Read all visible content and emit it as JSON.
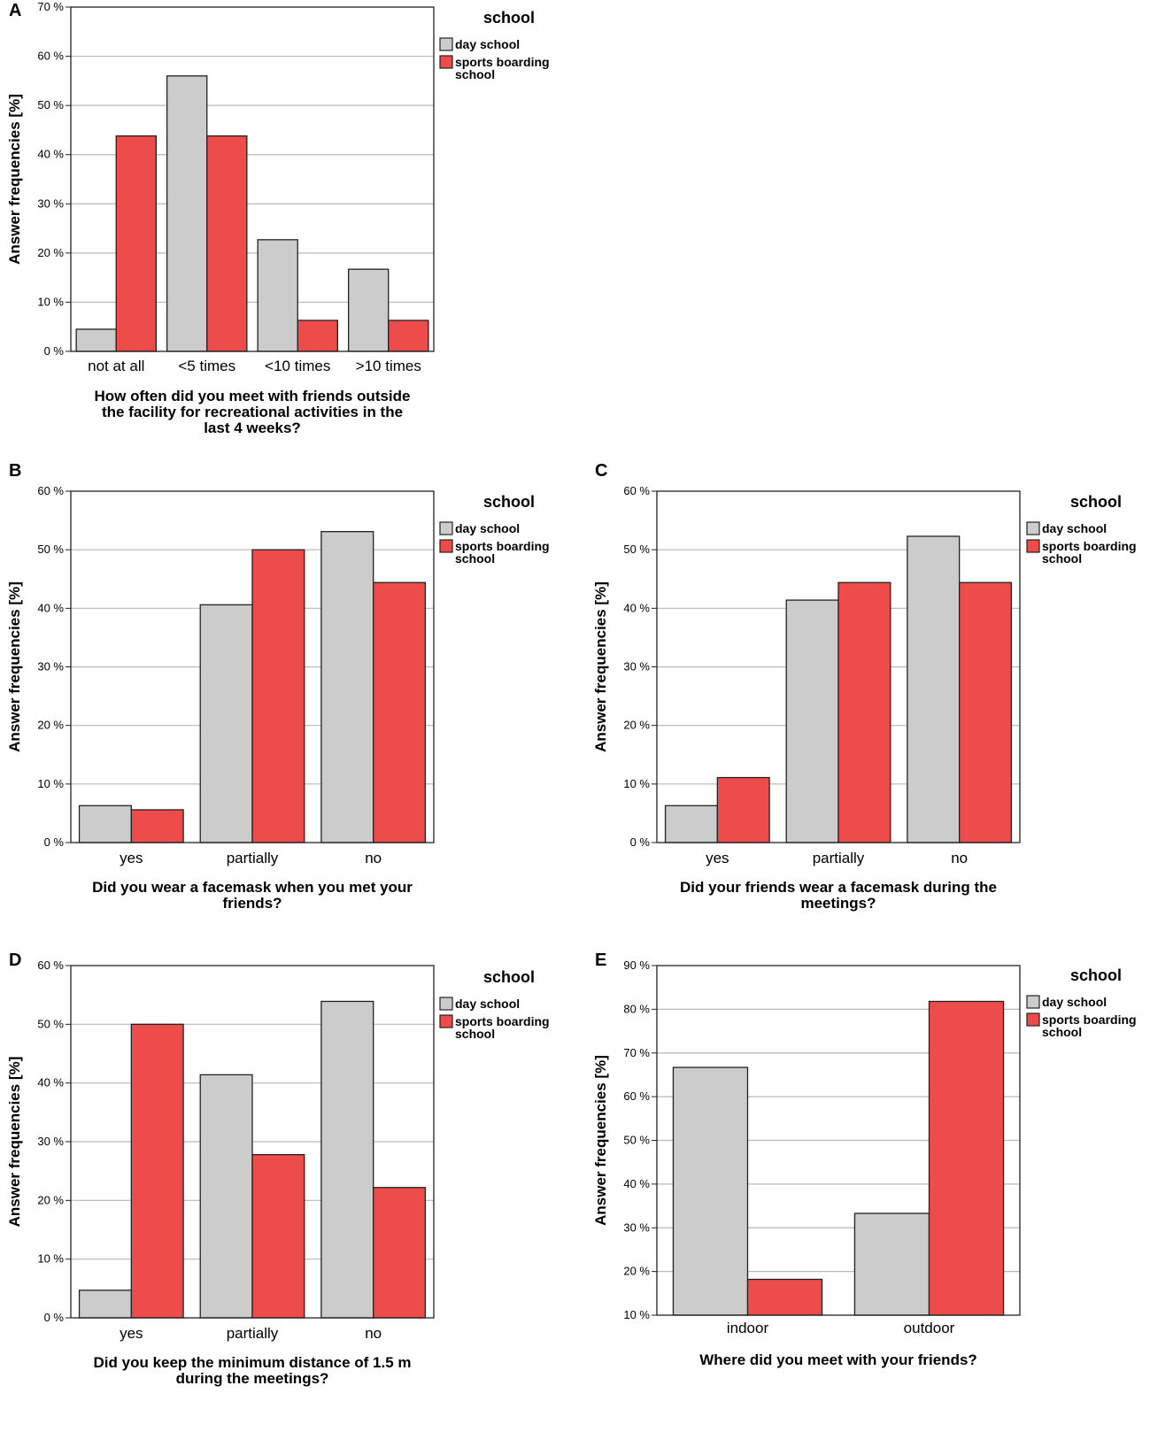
{
  "legend_colors": {
    "day school": "#cccccc",
    "sports boarding school": "#ee4b4b"
  },
  "chart_data": [
    {
      "panel": "A",
      "type": "bar",
      "categories": [
        "not at all",
        "<5 times",
        "<10 times",
        ">10 times"
      ],
      "series": [
        {
          "name": "day school",
          "values": [
            4.5,
            56,
            22.7,
            16.7
          ]
        },
        {
          "name": "sports boarding school",
          "values": [
            43.8,
            43.8,
            6.3,
            6.3
          ]
        }
      ],
      "title": "",
      "xlabel_lines": [
        "How often did you meet with friends outside",
        "the facility for recreational activities in the",
        "last 4 weeks?"
      ],
      "ylabel": "Answer frequencies [%]",
      "ylim": [
        0,
        70
      ],
      "yticks": [
        0,
        10,
        20,
        30,
        40,
        50,
        60,
        70
      ],
      "legend_title": "school",
      "legend_items": [
        [
          "day school"
        ],
        [
          "sports boarding",
          "school"
        ]
      ],
      "legend_position": "right",
      "grid": true
    },
    {
      "panel": "B",
      "type": "bar",
      "categories": [
        "yes",
        "partially",
        "no"
      ],
      "series": [
        {
          "name": "day school",
          "values": [
            6.3,
            40.6,
            53.1
          ]
        },
        {
          "name": "sports boarding school",
          "values": [
            5.6,
            50,
            44.4
          ]
        }
      ],
      "title": "",
      "xlabel_lines": [
        "Did you wear a facemask when you met your",
        "friends?"
      ],
      "ylabel": "Answer frequencies [%]",
      "ylim": [
        0,
        60
      ],
      "yticks": [
        0,
        10,
        20,
        30,
        40,
        50,
        60
      ],
      "legend_title": "school",
      "legend_items": [
        [
          "day school"
        ],
        [
          "sports boarding",
          "school"
        ]
      ],
      "legend_position": "right",
      "grid": true
    },
    {
      "panel": "C",
      "type": "bar",
      "categories": [
        "yes",
        "partially",
        "no"
      ],
      "series": [
        {
          "name": "day school",
          "values": [
            6.3,
            41.4,
            52.3
          ]
        },
        {
          "name": "sports boarding school",
          "values": [
            11.1,
            44.4,
            44.4
          ]
        }
      ],
      "title": "",
      "xlabel_lines": [
        "Did your friends wear a facemask during the",
        "meetings?"
      ],
      "ylabel": "Answer frequencies [%]",
      "ylim": [
        0,
        60
      ],
      "yticks": [
        0,
        10,
        20,
        30,
        40,
        50,
        60
      ],
      "legend_title": "school",
      "legend_items": [
        [
          "day school"
        ],
        [
          "sports boarding",
          "school"
        ]
      ],
      "legend_position": "right",
      "grid": true
    },
    {
      "panel": "D",
      "type": "bar",
      "categories": [
        "yes",
        "partially",
        "no"
      ],
      "series": [
        {
          "name": "day school",
          "values": [
            4.7,
            41.4,
            53.9
          ]
        },
        {
          "name": "sports boarding school",
          "values": [
            50,
            27.8,
            22.2
          ]
        }
      ],
      "title": "",
      "xlabel_lines": [
        "Did you keep the minimum distance of 1.5 m",
        "during the meetings?"
      ],
      "ylabel": "Answer frequencies [%]",
      "ylim": [
        0,
        60
      ],
      "yticks": [
        0,
        10,
        20,
        30,
        40,
        50,
        60
      ],
      "legend_title": "school",
      "legend_items": [
        [
          "day school"
        ],
        [
          "sports boarding",
          "school"
        ]
      ],
      "legend_position": "right",
      "grid": true
    },
    {
      "panel": "E",
      "type": "bar",
      "categories": [
        "indoor",
        "outdoor"
      ],
      "series": [
        {
          "name": "day school",
          "values": [
            66.7,
            33.3
          ]
        },
        {
          "name": "sports boarding school",
          "values": [
            18.2,
            81.8
          ]
        }
      ],
      "title": "",
      "xlabel_lines": [
        "Where did you meet with your friends?"
      ],
      "ylabel": "Answer frequencies [%]",
      "ylim": [
        10,
        90
      ],
      "yticks": [
        10,
        20,
        30,
        40,
        50,
        60,
        70,
        80,
        90
      ],
      "legend_title": "school",
      "legend_items": [
        [
          "day school"
        ],
        [
          "sports boarding",
          "school"
        ]
      ],
      "legend_position": "right",
      "grid": true
    }
  ]
}
